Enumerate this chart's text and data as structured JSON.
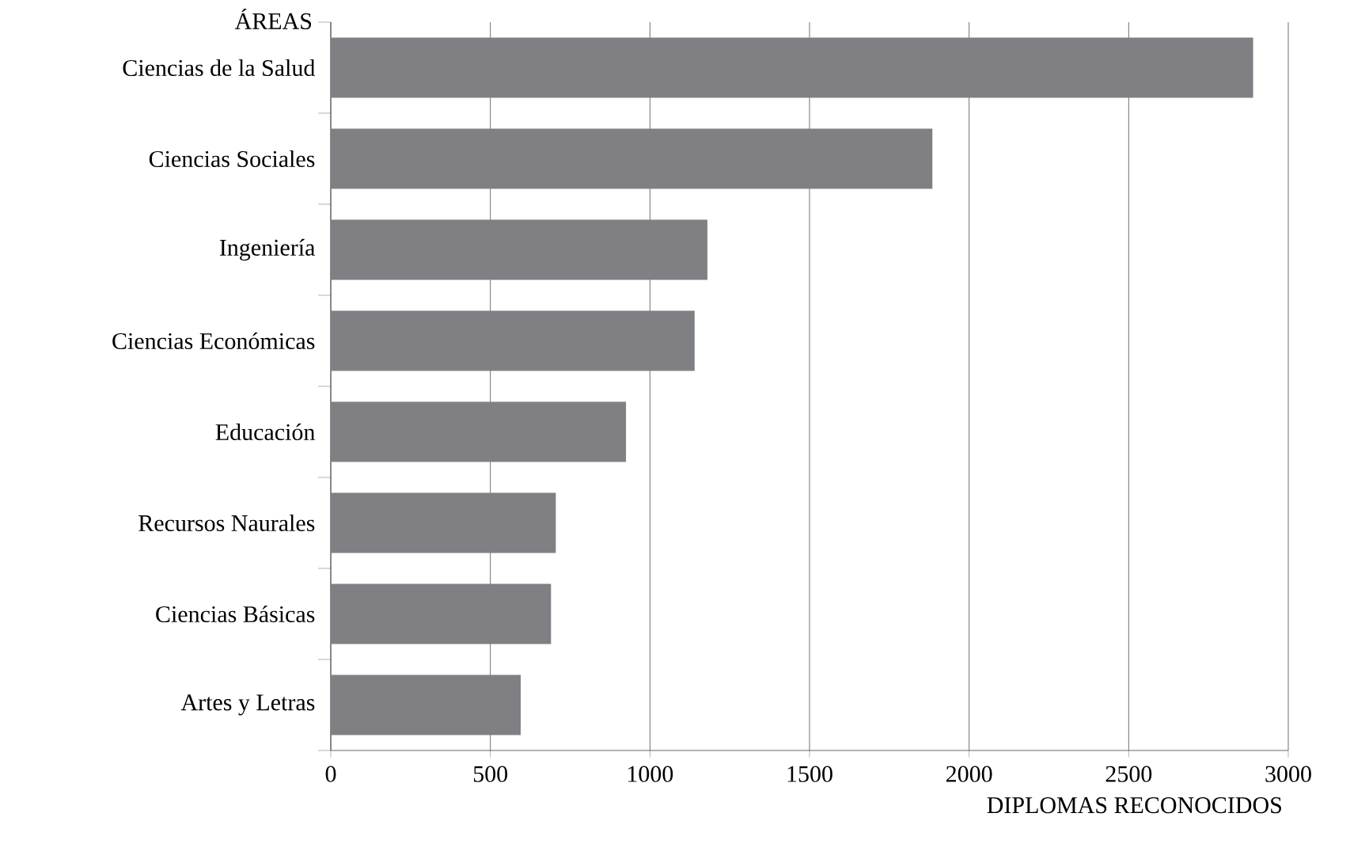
{
  "chart_data": {
    "type": "bar",
    "orientation": "horizontal",
    "ylabel": "ÁREAS",
    "xlabel": "DIPLOMAS RECONOCIDOS",
    "categories": [
      "Ciencias de la Salud",
      "Ciencias Sociales",
      "Ingeniería",
      "Ciencias Económicas",
      "Educación",
      "Recursos Naurales",
      "Ciencias Básicas",
      "Artes y Letras"
    ],
    "values": [
      2890,
      1885,
      1180,
      1140,
      925,
      705,
      690,
      595
    ],
    "color": "#808084",
    "xlim": [
      0,
      3000
    ],
    "xticks": [
      0,
      500,
      1000,
      1500,
      2000,
      2500,
      3000
    ],
    "grid": "x"
  }
}
